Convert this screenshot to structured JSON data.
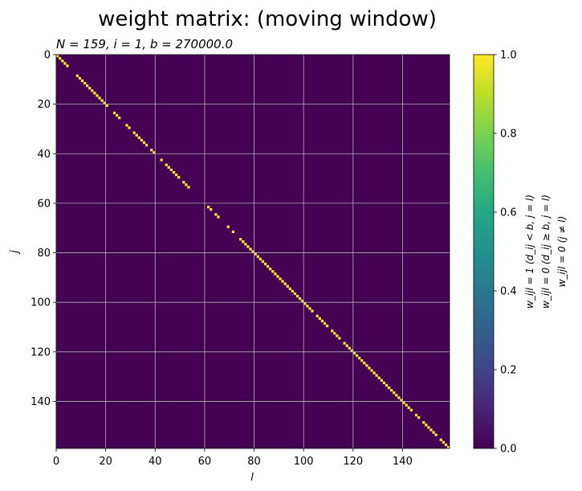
{
  "chart_data": {
    "type": "heatmap",
    "title": "weight matrix: (moving window)",
    "subtitle": "N = 159, i = 1, b = 270000.0",
    "xlabel": "l",
    "ylabel": "j",
    "n": 159,
    "xlim": [
      0,
      159
    ],
    "ylim": [
      159,
      0
    ],
    "x_ticks": [
      0,
      20,
      40,
      60,
      80,
      100,
      120,
      140
    ],
    "y_ticks": [
      0,
      20,
      40,
      60,
      80,
      100,
      120,
      140
    ],
    "grid": true,
    "colormap": "viridis",
    "colorbar": {
      "range": [
        0,
        1
      ],
      "ticks": [
        "0.0",
        "0.2",
        "0.4",
        "0.6",
        "0.8",
        "1.0"
      ],
      "labels": [
        "w_ijl = 1 (d_ij < b, j = l)",
        "w_ijl = 0 (d_ij ≥ b, j = l)",
        "w_ijl = 0 (j ≠ l)"
      ]
    },
    "value_one_indices": [
      0,
      1,
      2,
      3,
      4,
      8,
      9,
      10,
      11,
      12,
      13,
      14,
      15,
      16,
      17,
      18,
      19,
      20,
      23,
      24,
      25,
      28,
      29,
      31,
      32,
      33,
      34,
      35,
      36,
      38,
      39,
      42,
      44,
      45,
      46,
      47,
      48,
      49,
      51,
      52,
      53,
      61,
      62,
      64,
      65,
      69,
      71,
      74,
      75,
      76,
      77,
      78,
      79,
      80,
      81,
      82,
      83,
      84,
      85,
      86,
      87,
      88,
      89,
      90,
      91,
      92,
      93,
      94,
      95,
      96,
      97,
      98,
      99,
      100,
      101,
      102,
      103,
      105,
      106,
      107,
      108,
      109,
      111,
      112,
      113,
      114,
      116,
      117,
      118,
      119,
      120,
      121,
      122,
      123,
      124,
      125,
      126,
      127,
      128,
      129,
      130,
      131,
      132,
      133,
      134,
      135,
      136,
      137,
      138,
      139,
      140,
      141,
      142,
      143,
      145,
      146,
      148,
      149,
      150,
      151,
      152,
      153,
      155,
      156,
      157,
      158
    ],
    "colors": {
      "low": "#440154",
      "high": "#fde725",
      "grid": "#b0b0b0"
    }
  }
}
